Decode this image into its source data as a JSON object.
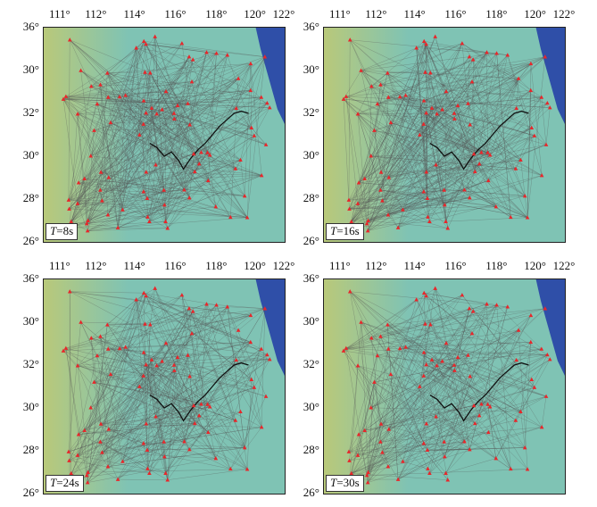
{
  "lon_ticks": [
    "111°",
    "112°",
    "114°",
    "116°",
    "118°",
    "120°",
    "122°"
  ],
  "lat_ticks": [
    "36°",
    "30°",
    "32°",
    "30°",
    "28°",
    "26°"
  ],
  "panels": [
    {
      "period_var": "T",
      "period_val": "=8s"
    },
    {
      "period_var": "T",
      "period_val": "=16s"
    },
    {
      "period_var": "T",
      "period_val": "=24s"
    },
    {
      "period_var": "T",
      "period_val": "=30s"
    }
  ],
  "colors": {
    "ocean": "#2f4fa8",
    "land_low": "#7fc3b4",
    "land_high": "#b9c97a",
    "ray_paths": "#555555",
    "stations": "#e8262a",
    "river": "#111111"
  }
}
